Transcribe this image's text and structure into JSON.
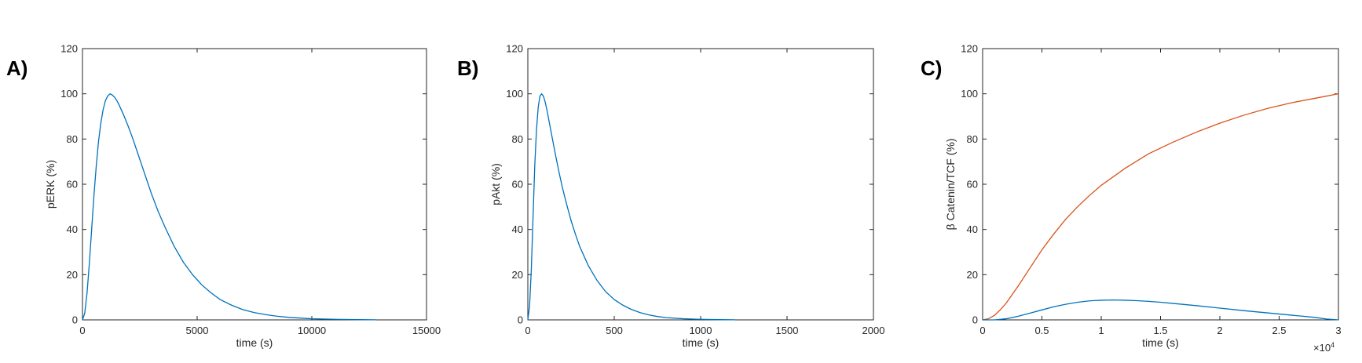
{
  "chart_data": [
    {
      "type": "line",
      "panel_label": "A)",
      "xlabel": "time (s)",
      "ylabel": "pERK (%)",
      "xlim": [
        0,
        15000
      ],
      "ylim": [
        0,
        120
      ],
      "xticks": [
        0,
        5000,
        10000,
        15000
      ],
      "xtick_labels": [
        "0",
        "5000",
        "10000",
        "15000"
      ],
      "yticks": [
        0,
        20,
        40,
        60,
        80,
        100,
        120
      ],
      "ytick_labels": [
        "0",
        "20",
        "40",
        "60",
        "80",
        "100",
        "120"
      ],
      "x_multiplier": "",
      "grid": false,
      "series": [
        {
          "color": "#0072BD",
          "x": [
            0,
            100,
            200,
            300,
            400,
            500,
            600,
            700,
            800,
            900,
            1000,
            1100,
            1200,
            1300,
            1400,
            1500,
            1600,
            1800,
            2000,
            2200,
            2400,
            2600,
            2800,
            3000,
            3300,
            3600,
            4000,
            4400,
            4800,
            5200,
            5600,
            6000,
            6500,
            7000,
            7500,
            8000,
            8500,
            9000,
            9500,
            10000,
            11000,
            12000,
            12800
          ],
          "y": [
            0,
            3,
            12,
            25,
            40,
            55,
            68,
            79,
            87,
            93,
            97,
            99,
            100,
            99.5,
            98.5,
            97,
            95,
            90.5,
            85.5,
            80,
            74,
            68,
            62,
            56,
            48,
            41,
            32.5,
            25.5,
            20,
            15.5,
            12,
            9,
            6.5,
            4.5,
            3.2,
            2.3,
            1.6,
            1.1,
            0.8,
            0.5,
            0.25,
            0.1,
            0.05
          ]
        }
      ]
    },
    {
      "type": "line",
      "panel_label": "B)",
      "xlabel": "time (s)",
      "ylabel": "pAkt (%)",
      "xlim": [
        0,
        2000
      ],
      "ylim": [
        0,
        120
      ],
      "xticks": [
        0,
        500,
        1000,
        1500,
        2000
      ],
      "xtick_labels": [
        "0",
        "500",
        "1000",
        "1500",
        "2000"
      ],
      "yticks": [
        0,
        20,
        40,
        60,
        80,
        100,
        120
      ],
      "ytick_labels": [
        "0",
        "20",
        "40",
        "60",
        "80",
        "100",
        "120"
      ],
      "x_multiplier": "",
      "grid": false,
      "series": [
        {
          "color": "#0072BD",
          "x": [
            0,
            10,
            20,
            30,
            40,
            50,
            60,
            70,
            80,
            90,
            100,
            110,
            120,
            140,
            160,
            180,
            200,
            225,
            250,
            275,
            300,
            350,
            400,
            450,
            500,
            550,
            600,
            650,
            700,
            750,
            800,
            900,
            1000,
            1100,
            1200
          ],
          "y": [
            0,
            6,
            22,
            45,
            68,
            84,
            94,
            99,
            100,
            99,
            96.5,
            93,
            89,
            81,
            73,
            65.5,
            58.5,
            51,
            44,
            38,
            32.5,
            24,
            17.5,
            12.5,
            9,
            6.5,
            4.6,
            3.2,
            2.2,
            1.5,
            1.0,
            0.5,
            0.25,
            0.1,
            0.05
          ]
        }
      ]
    },
    {
      "type": "line",
      "panel_label": "C)",
      "xlabel": "time (s)",
      "ylabel": "β Catenin/TCF (%)",
      "xlim": [
        0,
        30000
      ],
      "ylim": [
        0,
        120
      ],
      "xticks": [
        0,
        5000,
        10000,
        15000,
        20000,
        25000,
        30000
      ],
      "xtick_labels": [
        "0",
        "0.5",
        "1",
        "1.5",
        "2",
        "2.5",
        "3"
      ],
      "yticks": [
        0,
        20,
        40,
        60,
        80,
        100,
        120
      ],
      "ytick_labels": [
        "0",
        "20",
        "40",
        "60",
        "80",
        "100",
        "120"
      ],
      "x_multiplier": "×10",
      "x_multiplier_exp": "4",
      "grid": false,
      "series": [
        {
          "color": "#D95319",
          "x": [
            0,
            500,
            1000,
            1500,
            2000,
            3000,
            4000,
            5000,
            6000,
            7000,
            8000,
            9000,
            10000,
            12000,
            14000,
            16000,
            18000,
            20000,
            22000,
            24000,
            26000,
            28000,
            30000
          ],
          "y": [
            0,
            0.5,
            2,
            4.5,
            7.5,
            15,
            23,
            31,
            38,
            44.5,
            50,
            55,
            59.5,
            67,
            73.5,
            78.5,
            83,
            87,
            90.5,
            93.5,
            96,
            98,
            100
          ]
        },
        {
          "color": "#0072BD",
          "x": [
            0,
            1000,
            2000,
            3000,
            4000,
            5000,
            6000,
            7000,
            8000,
            9000,
            10000,
            11000,
            12000,
            13000,
            14000,
            15000,
            16000,
            18000,
            20000,
            22000,
            24000,
            26000,
            28000,
            29000,
            30000
          ],
          "y": [
            0,
            0,
            0.5,
            1.6,
            3,
            4.4,
            5.8,
            6.9,
            7.8,
            8.4,
            8.7,
            8.8,
            8.7,
            8.5,
            8.2,
            7.8,
            7.3,
            6.3,
            5.2,
            4.1,
            3.1,
            2.1,
            1.1,
            0.4,
            0
          ]
        }
      ]
    }
  ]
}
